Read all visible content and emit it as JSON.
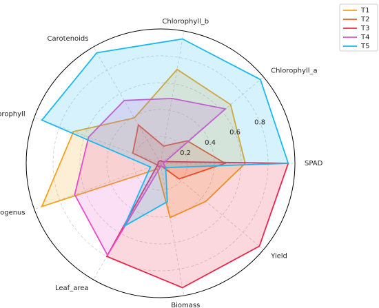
{
  "chart_data": {
    "type": "radar",
    "categories": [
      "SPAD",
      "Chlorophyll_a",
      "Chlorophyll_b",
      "Carotenoids",
      "Total_Chlorophyll",
      "NR_Endogenus",
      "Leaf_area",
      "Biomass",
      "Yield"
    ],
    "series": [
      {
        "name": "T1",
        "color": "#f5a31a",
        "values": [
          0.63,
          0.68,
          0.71,
          0.39,
          0.69,
          0.94,
          0.05,
          0.41,
          0.44
        ]
      },
      {
        "name": "T2",
        "color": "#f0541e",
        "values": [
          0.48,
          0.26,
          0.13,
          0.33,
          0.22,
          0.03,
          0.03,
          0.02,
          0.18
        ]
      },
      {
        "name": "T3",
        "color": "#e8264a",
        "values": [
          0.95,
          0.02,
          0.02,
          0.02,
          0.02,
          0.02,
          0.8,
          0.94,
          0.96
        ]
      },
      {
        "name": "T4",
        "color": "#e64bc8",
        "values": [
          0.02,
          0.63,
          0.49,
          0.54,
          0.57,
          0.68,
          0.79,
          0.02,
          0.05
        ]
      },
      {
        "name": "T5",
        "color": "#1ab8f0",
        "values": [
          0.95,
          0.97,
          0.94,
          0.95,
          0.94,
          0.08,
          0.54,
          0.29,
          0.05
        ]
      }
    ],
    "ylim": [
      0,
      1
    ],
    "yticks": [
      0.2,
      0.4,
      0.6,
      0.8
    ],
    "grid": true,
    "legend": "upper right"
  }
}
